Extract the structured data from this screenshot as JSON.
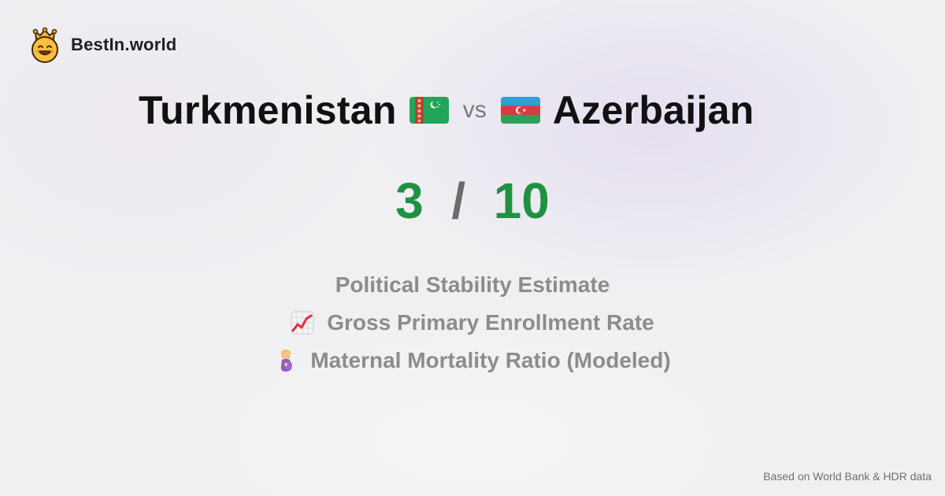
{
  "brand": {
    "name": "BestIn.world",
    "logo_icon": "crowned-smiley-icon"
  },
  "comparison": {
    "country_a": "Turkmenistan",
    "flag_a": "turkmenistan-flag-icon",
    "vs": "vs",
    "country_b": "Azerbaijan",
    "flag_b": "azerbaijan-flag-icon"
  },
  "score": {
    "a": "3",
    "separator": "/",
    "b": "10",
    "color": "#1f9141"
  },
  "metrics": [
    {
      "label": "Political Stability Estimate",
      "icon": ""
    },
    {
      "label": "Gross Primary Enrollment Rate",
      "icon": "chart-increasing-icon"
    },
    {
      "label": "Maternal Mortality Ratio (Modeled)",
      "icon": "pregnant-woman-icon"
    }
  ],
  "footer": {
    "source": "Based on World Bank & HDR data"
  }
}
